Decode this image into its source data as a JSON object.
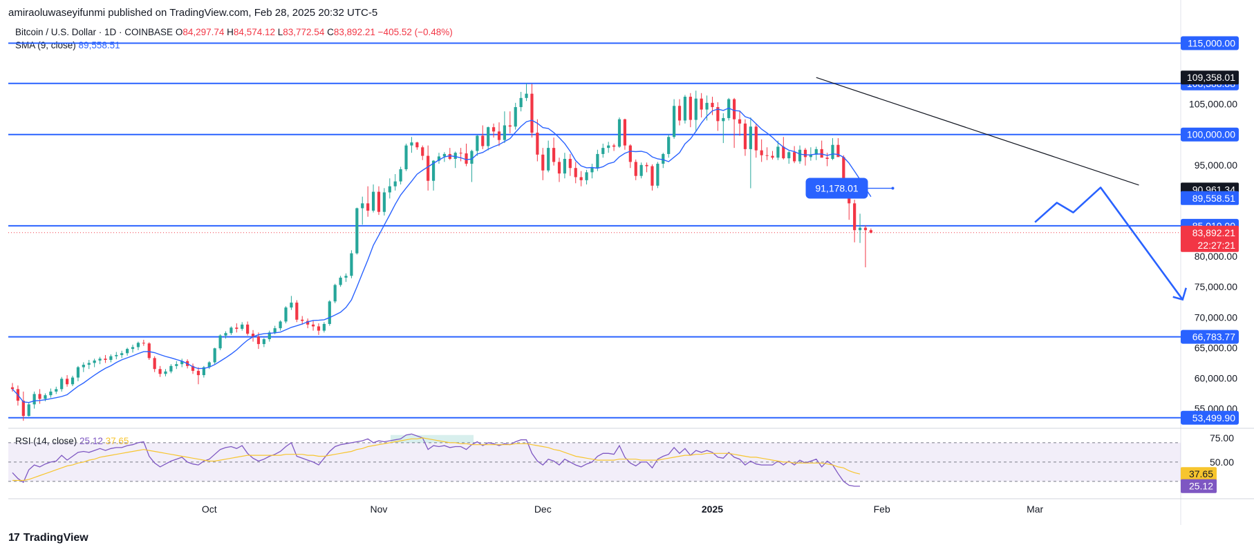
{
  "header": {
    "published": "amiraoluwaseyifunmi published on TradingView.com, Feb 28, 2025 20:32 UTC-5"
  },
  "legend": {
    "symbol": "Bitcoin / U.S. Dollar · 1D · COINBASE",
    "open_label": "O",
    "open": "84,297.74",
    "high_label": "H",
    "high": "84,574.12",
    "low_label": "L",
    "low": "83,772.54",
    "close_label": "C",
    "close": "83,892.21",
    "change": "−405.52 (−0.48%)",
    "sma_label": "SMA (9, close)",
    "sma_value": "89,558.51",
    "rsi_label": "RSI (14, close)",
    "rsi_value": "25.12",
    "rsi_ma_value": "37.65"
  },
  "footer": {
    "brand": "TradingView",
    "logo": "tradingview-logo-icon"
  },
  "colors": {
    "up": "#26a69a",
    "down": "#f23645",
    "level": "#2962ff",
    "sma": "#2962ff",
    "rsi": "#7e57c2",
    "rsi_ma": "#f7c52e",
    "trendline": "#131722",
    "last_price": "#f23645"
  },
  "chart_data": {
    "type": "candlestick",
    "title": "Bitcoin / U.S. Dollar · 1D · COINBASE",
    "price_axis_labels": [
      "115,000.00",
      "105,000.00",
      "100,000.00",
      "95,000.00",
      "90,000.00",
      "85,000.00",
      "80,000.00",
      "75,000.00",
      "70,000.00",
      "65,000.00",
      "60,000.00",
      "55,000.00"
    ],
    "ylim": [
      52000,
      118000
    ],
    "x_labels": [
      {
        "label": "Oct",
        "date": "2024-10-01",
        "bold": false
      },
      {
        "label": "Nov",
        "date": "2024-11-01",
        "bold": false
      },
      {
        "label": "Dec",
        "date": "2024-12-01",
        "bold": false
      },
      {
        "label": "2025",
        "date": "2025-01-01",
        "bold": true
      },
      {
        "label": "Feb",
        "date": "2025-02-01",
        "bold": false
      },
      {
        "label": "Mar",
        "date": "2025-03-01",
        "bold": false
      }
    ],
    "horizontal_levels": [
      {
        "value": 115000,
        "label": "115,000.00"
      },
      {
        "value": 108388.88,
        "label": "108,388.88"
      },
      {
        "value": 100000,
        "label": "100,000.00"
      },
      {
        "value": 85010,
        "label": "85,010.00"
      },
      {
        "value": 66783.77,
        "label": "66,783.77"
      },
      {
        "value": 53499.9,
        "label": "53,499.90"
      }
    ],
    "price_tags": [
      {
        "label": "109,358.01",
        "value": 109358.01,
        "style": "dark"
      },
      {
        "label": "90,961.34",
        "value": 90961.34,
        "style": "dark"
      },
      {
        "label": "89,558.51",
        "value": 89558.51,
        "style": "sma"
      },
      {
        "label": "83,892.21",
        "value": 83892.21,
        "countdown": "22:27:21",
        "style": "last"
      }
    ],
    "annotation": {
      "label": "91,178.01",
      "date": "2025-02-03",
      "value": 91178.01
    },
    "trendline": [
      {
        "date": "2025-01-20",
        "value": 109358
      },
      {
        "date": "2025-03-20",
        "value": 91700
      }
    ],
    "projection": [
      {
        "date": "2025-03-01",
        "value": 85600
      },
      {
        "date": "2025-03-05",
        "value": 88800
      },
      {
        "date": "2025-03-08",
        "value": 87200
      },
      {
        "date": "2025-03-13",
        "value": 91300
      },
      {
        "date": "2025-03-28",
        "value": 72900
      }
    ],
    "candles_ohlc_from_2024_08_26": [
      [
        58500,
        59200,
        57800,
        58200
      ],
      [
        58200,
        58800,
        55500,
        56300
      ],
      [
        56300,
        57800,
        53000,
        53800
      ],
      [
        53800,
        56000,
        53700,
        55700
      ],
      [
        55700,
        57800,
        55000,
        57400
      ],
      [
        57400,
        58200,
        55800,
        56600
      ],
      [
        56600,
        57500,
        56200,
        57200
      ],
      [
        57200,
        58300,
        56800,
        57800
      ],
      [
        57800,
        58600,
        57400,
        58200
      ],
      [
        58200,
        60200,
        57800,
        59900
      ],
      [
        59900,
        60500,
        58600,
        59000
      ],
      [
        59000,
        60400,
        58700,
        60100
      ],
      [
        60100,
        62000,
        59500,
        61800
      ],
      [
        61800,
        62600,
        61000,
        62200
      ],
      [
        62200,
        63000,
        61500,
        62500
      ],
      [
        62500,
        63200,
        61800,
        62900
      ],
      [
        62900,
        63500,
        62300,
        63200
      ],
      [
        63200,
        63800,
        62500,
        63000
      ],
      [
        63000,
        63900,
        62600,
        63600
      ],
      [
        63600,
        64300,
        63100,
        63800
      ],
      [
        63800,
        64500,
        63300,
        64100
      ],
      [
        64100,
        65000,
        63700,
        64800
      ],
      [
        64800,
        65500,
        64200,
        65100
      ],
      [
        65100,
        66000,
        64600,
        65800
      ],
      [
        65800,
        66300,
        65300,
        65700
      ],
      [
        65700,
        65900,
        63000,
        63300
      ],
      [
        63300,
        63600,
        61000,
        61500
      ],
      [
        61500,
        62000,
        60200,
        60700
      ],
      [
        60700,
        61500,
        60300,
        61100
      ],
      [
        61100,
        62300,
        60800,
        62000
      ],
      [
        62000,
        62800,
        61500,
        62300
      ],
      [
        62300,
        63200,
        61800,
        62800
      ],
      [
        62800,
        63100,
        61600,
        62000
      ],
      [
        62000,
        62400,
        60700,
        61200
      ],
      [
        61200,
        61800,
        59000,
        60500
      ],
      [
        60500,
        62000,
        60100,
        61800
      ],
      [
        61800,
        62800,
        61500,
        62600
      ],
      [
        62600,
        65000,
        62300,
        64900
      ],
      [
        64900,
        67200,
        64600,
        67000
      ],
      [
        67000,
        67700,
        66500,
        67400
      ],
      [
        67400,
        68500,
        67100,
        68300
      ],
      [
        68300,
        69000,
        67500,
        68100
      ],
      [
        68100,
        69200,
        67800,
        68800
      ],
      [
        68800,
        69300,
        67000,
        67300
      ],
      [
        67300,
        67900,
        66000,
        66800
      ],
      [
        66800,
        67500,
        64800,
        65600
      ],
      [
        65600,
        66600,
        65100,
        66400
      ],
      [
        66400,
        67800,
        66000,
        67500
      ],
      [
        67500,
        68600,
        67200,
        68200
      ],
      [
        68200,
        69500,
        67800,
        69300
      ],
      [
        69300,
        71800,
        69000,
        71600
      ],
      [
        71600,
        73500,
        71200,
        72400
      ],
      [
        72400,
        72800,
        69200,
        69600
      ],
      [
        69600,
        70200,
        68800,
        69400
      ],
      [
        69400,
        69800,
        68200,
        68800
      ],
      [
        68800,
        69400,
        67800,
        68500
      ],
      [
        68500,
        69000,
        67100,
        67800
      ],
      [
        67800,
        69200,
        67500,
        68900
      ],
      [
        68900,
        72800,
        68600,
        72600
      ],
      [
        72600,
        75500,
        72300,
        75300
      ],
      [
        75300,
        76800,
        75000,
        76500
      ],
      [
        76500,
        77200,
        75800,
        76800
      ],
      [
        76800,
        81000,
        76400,
        80500
      ],
      [
        80500,
        88000,
        80300,
        87900
      ],
      [
        87900,
        89800,
        85200,
        88700
      ],
      [
        88700,
        91500,
        86500,
        87500
      ],
      [
        87500,
        91800,
        87200,
        90600
      ],
      [
        90600,
        91500,
        86800,
        87300
      ],
      [
        87300,
        91200,
        86700,
        90500
      ],
      [
        90500,
        92800,
        89500,
        91500
      ],
      [
        91500,
        93500,
        90800,
        92300
      ],
      [
        92300,
        94700,
        91800,
        94300
      ],
      [
        94300,
        98500,
        94000,
        98200
      ],
      [
        98200,
        99600,
        97000,
        98700
      ],
      [
        98700,
        98800,
        97500,
        97900
      ],
      [
        97900,
        98200,
        95800,
        96500
      ],
      [
        96500,
        98200,
        90800,
        92400
      ],
      [
        92400,
        95800,
        90800,
        95700
      ],
      [
        95700,
        97000,
        95200,
        96400
      ],
      [
        96400,
        97100,
        95500,
        96800
      ],
      [
        96800,
        97800,
        95800,
        96000
      ],
      [
        96000,
        97200,
        94500,
        97000
      ],
      [
        97000,
        97800,
        95600,
        96900
      ],
      [
        96900,
        98500,
        94800,
        95200
      ],
      [
        95200,
        97500,
        92200,
        97300
      ],
      [
        97300,
        99900,
        96500,
        99800
      ],
      [
        99800,
        101500,
        97600,
        98100
      ],
      [
        98100,
        101300,
        97400,
        101200
      ],
      [
        101200,
        101800,
        99500,
        100500
      ],
      [
        100500,
        102000,
        98100,
        99100
      ],
      [
        99100,
        103800,
        98600,
        101500
      ],
      [
        101500,
        103800,
        100200,
        101300
      ],
      [
        101300,
        105200,
        100800,
        104500
      ],
      [
        104500,
        107000,
        103800,
        106000
      ],
      [
        106000,
        108400,
        105500,
        106700
      ],
      [
        106700,
        108300,
        99500,
        100300
      ],
      [
        100300,
        102500,
        95600,
        96700
      ],
      [
        96700,
        97800,
        92500,
        94100
      ],
      [
        94100,
        99000,
        93800,
        97800
      ],
      [
        97800,
        99500,
        94900,
        95500
      ],
      [
        95500,
        96200,
        92200,
        93600
      ],
      [
        93600,
        97000,
        92800,
        96000
      ],
      [
        96000,
        96800,
        93200,
        94500
      ],
      [
        94500,
        95500,
        92000,
        93000
      ],
      [
        93000,
        94000,
        91500,
        92500
      ],
      [
        92500,
        94200,
        91800,
        93800
      ],
      [
        93800,
        95200,
        92800,
        94500
      ],
      [
        94500,
        97500,
        94000,
        96800
      ],
      [
        96800,
        98500,
        96200,
        97800
      ],
      [
        97800,
        98800,
        97000,
        98200
      ],
      [
        98200,
        98500,
        97300,
        98000
      ],
      [
        98000,
        102800,
        97800,
        102500
      ],
      [
        102500,
        102600,
        97500,
        98200
      ],
      [
        98200,
        98400,
        94500,
        95500
      ],
      [
        95500,
        95900,
        92500,
        93200
      ],
      [
        93200,
        95400,
        92800,
        95000
      ],
      [
        95000,
        95400,
        93800,
        94800
      ],
      [
        94800,
        95100,
        90800,
        91600
      ],
      [
        91600,
        95500,
        91200,
        95200
      ],
      [
        95200,
        97000,
        94500,
        96800
      ],
      [
        96800,
        100000,
        96200,
        99600
      ],
      [
        99600,
        105800,
        99300,
        104700
      ],
      [
        104700,
        105800,
        101500,
        102300
      ],
      [
        102300,
        106500,
        101800,
        106200
      ],
      [
        106200,
        106800,
        101200,
        102400
      ],
      [
        102400,
        107200,
        100500,
        105900
      ],
      [
        105900,
        106800,
        102800,
        104100
      ],
      [
        104100,
        106400,
        102300,
        105200
      ],
      [
        105200,
        106200,
        103200,
        104500
      ],
      [
        104500,
        105300,
        100600,
        102200
      ],
      [
        102200,
        103500,
        98600,
        102700
      ],
      [
        102700,
        106000,
        102300,
        105800
      ],
      [
        105800,
        106000,
        97800,
        102500
      ],
      [
        102500,
        103800,
        99800,
        101800
      ],
      [
        101800,
        102500,
        96500,
        97600
      ],
      [
        97600,
        102800,
        91178,
        101300
      ],
      [
        101300,
        101700,
        96200,
        97400
      ],
      [
        97400,
        99200,
        95500,
        96600
      ],
      [
        96600,
        97900,
        95800,
        96500
      ],
      [
        96500,
        97300,
        95900,
        96200
      ],
      [
        96200,
        99000,
        95800,
        98000
      ],
      [
        98000,
        99600,
        95900,
        96100
      ],
      [
        96100,
        97300,
        95200,
        97100
      ],
      [
        97100,
        98100,
        95300,
        95600
      ],
      [
        95600,
        98200,
        95200,
        97500
      ],
      [
        97500,
        97800,
        94900,
        96300
      ],
      [
        96300,
        97900,
        95700,
        96700
      ],
      [
        96700,
        98000,
        95800,
        97600
      ],
      [
        97600,
        99000,
        96800,
        96200
      ],
      [
        96200,
        97000,
        94800,
        96000
      ],
      [
        96000,
        99400,
        95800,
        98300
      ],
      [
        98300,
        99400,
        97700,
        96300
      ],
      [
        96300,
        96600,
        91500,
        91600
      ],
      [
        91600,
        92500,
        86000,
        88700
      ],
      [
        88700,
        89300,
        82300,
        84300
      ],
      [
        84300,
        87000,
        82200,
        84700
      ],
      [
        84700,
        85100,
        78200,
        84297
      ],
      [
        84297,
        84574,
        83772,
        83892
      ]
    ],
    "sma_9_close": "SMA 9 of the candle closes; last value 89,558.51",
    "rsi": {
      "label": "RSI (14, close)",
      "axis_labels": [
        "75.00",
        "50.00"
      ],
      "bands": [
        70,
        50,
        30
      ],
      "last": 25.12,
      "ma_last": 37.65,
      "values": [
        39,
        33,
        29,
        42,
        47,
        45,
        48,
        50,
        51,
        57,
        52,
        56,
        60,
        61,
        60,
        62,
        64,
        62,
        64,
        65,
        65,
        67,
        68,
        70,
        71,
        56,
        49,
        45,
        48,
        51,
        53,
        55,
        50,
        48,
        47,
        51,
        53,
        58,
        63,
        65,
        66,
        64,
        67,
        59,
        54,
        51,
        53,
        56,
        58,
        61,
        66,
        70,
        56,
        54,
        52,
        50,
        47,
        54,
        61,
        66,
        68,
        69,
        70,
        71,
        72,
        74,
        70,
        72,
        71,
        72,
        73,
        74,
        78,
        79,
        77,
        75,
        63,
        67,
        66,
        67,
        65,
        66,
        66,
        63,
        68,
        71,
        67,
        70,
        69,
        67,
        69,
        68,
        71,
        73,
        73,
        59,
        51,
        47,
        53,
        51,
        47,
        53,
        50,
        47,
        45,
        48,
        50,
        56,
        59,
        59,
        58,
        67,
        55,
        49,
        46,
        50,
        50,
        44,
        53,
        56,
        58,
        65,
        59,
        64,
        57,
        62,
        60,
        62,
        60,
        55,
        54,
        60,
        55,
        53,
        47,
        51,
        48,
        47,
        47,
        47,
        51,
        47,
        51,
        47,
        52,
        49,
        51,
        53,
        45,
        51,
        47,
        38,
        30,
        26,
        25,
        25
      ],
      "ma_values": [
        31,
        31,
        31,
        32,
        34,
        36,
        38,
        40,
        42,
        44,
        46,
        47,
        49,
        50,
        52,
        53,
        55,
        56,
        57,
        58,
        59,
        60,
        61,
        62,
        63,
        62,
        61,
        60,
        59,
        58,
        57,
        56,
        55,
        54,
        53,
        52,
        51,
        51,
        52,
        53,
        54,
        55,
        56,
        57,
        57,
        57,
        57,
        57,
        57,
        57,
        58,
        58,
        58,
        58,
        57,
        57,
        56,
        56,
        57,
        58,
        59,
        60,
        61,
        63,
        64,
        66,
        67,
        68,
        69,
        70,
        71,
        72,
        73,
        74,
        74,
        75,
        74,
        73,
        72,
        71,
        70,
        70,
        69,
        69,
        68,
        68,
        68,
        68,
        68,
        68,
        68,
        68,
        69,
        69,
        69,
        68,
        67,
        66,
        65,
        63,
        62,
        60,
        58,
        56,
        55,
        54,
        53,
        52,
        52,
        52,
        52,
        53,
        53,
        53,
        53,
        52,
        52,
        52,
        52,
        53,
        54,
        55,
        56,
        57,
        57,
        58,
        58,
        59,
        59,
        59,
        59,
        59,
        58,
        57,
        56,
        55,
        55,
        54,
        53,
        52,
        51,
        50,
        50,
        49,
        49,
        49,
        49,
        49,
        49,
        48,
        47,
        45,
        44,
        41,
        39,
        37.65
      ]
    }
  }
}
